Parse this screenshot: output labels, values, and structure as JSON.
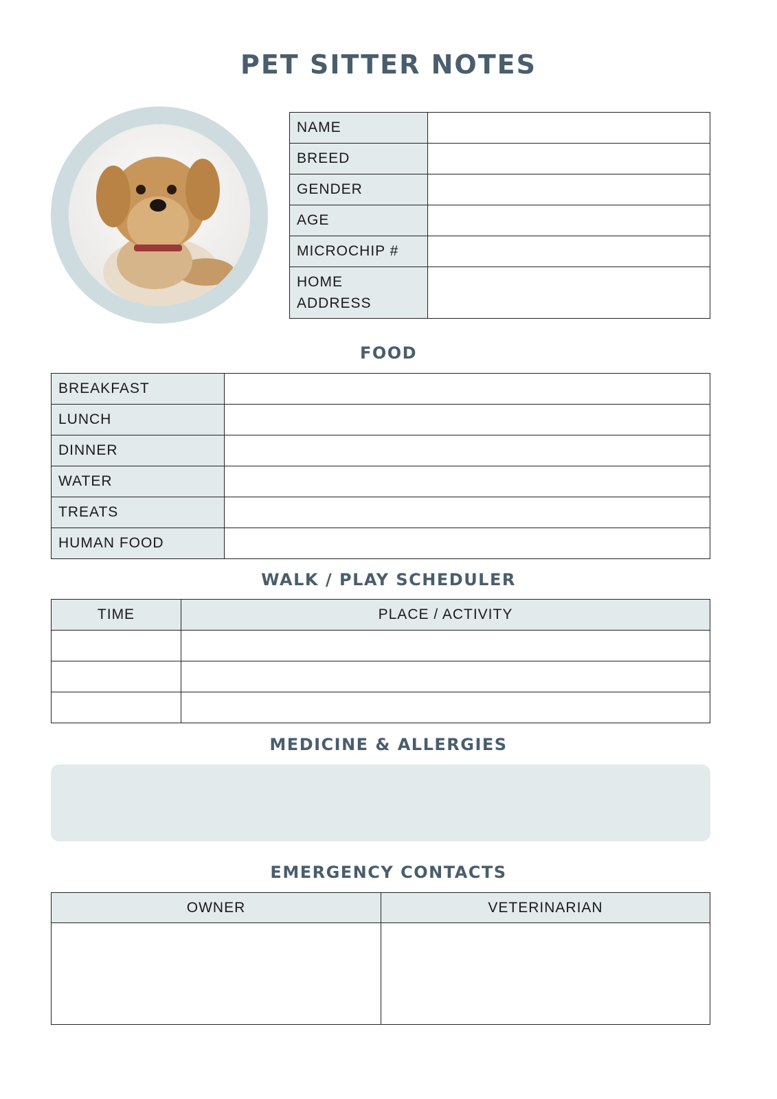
{
  "title": "PET SITTER NOTES",
  "photo": {
    "icon": "dog-photo",
    "ring_color": "#cfdcdf"
  },
  "pet_info": {
    "rows": [
      {
        "label": "NAME",
        "value": ""
      },
      {
        "label": "BREED",
        "value": ""
      },
      {
        "label": "GENDER",
        "value": ""
      },
      {
        "label": "AGE",
        "value": ""
      },
      {
        "label": "MICROCHIP #",
        "value": ""
      },
      {
        "label": "HOME ADDRESS",
        "value": ""
      }
    ]
  },
  "food": {
    "heading": "FOOD",
    "rows": [
      {
        "label": "BREAKFAST",
        "value": ""
      },
      {
        "label": "LUNCH",
        "value": ""
      },
      {
        "label": "DINNER",
        "value": ""
      },
      {
        "label": "WATER",
        "value": ""
      },
      {
        "label": "TREATS",
        "value": ""
      },
      {
        "label": "HUMAN FOOD",
        "value": ""
      }
    ]
  },
  "walk": {
    "heading": "WALK / PLAY SCHEDULER",
    "columns": [
      "TIME",
      "PLACE / ACTIVITY"
    ]
  },
  "medicine": {
    "heading": "MEDICINE & ALLERGIES",
    "value": ""
  },
  "emergency": {
    "heading": "EMERGENCY CONTACTS",
    "columns": [
      "OWNER",
      "VETERINARIAN"
    ]
  },
  "colors": {
    "heading": "#4a5d6c",
    "label_bg": "#e3eaec"
  }
}
